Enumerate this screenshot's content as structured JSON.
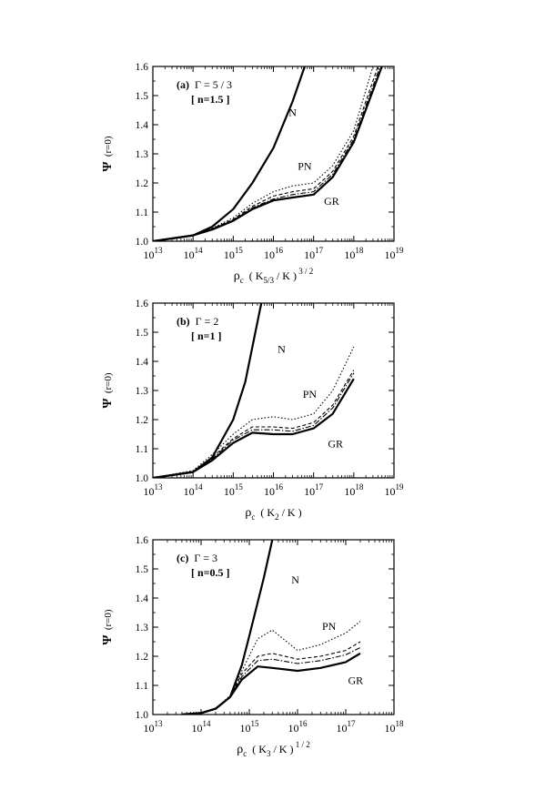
{
  "chart_data": [
    {
      "type": "line",
      "panel": "(a)",
      "annotation_gamma": "Γ = 5 / 3",
      "annotation_n_open": "[ ",
      "annotation_n": "n=1.5",
      "annotation_n_close": " ]",
      "ylabel_main": "Ψ",
      "ylabel_sub": "(r=0)",
      "xlabel_main": "ρ",
      "xlabel_c": "c",
      "xlabel_rest": "( K",
      "xlabel_sub": "5/3",
      "xlabel_mid": "/ K )",
      "xlabel_sup": "3 / 2",
      "x_scale": "log",
      "xlim": [
        10000000000000.0,
        1e+19
      ],
      "ylim": [
        1.0,
        1.6
      ],
      "yticks": [
        "1.0",
        "1.1",
        "1.2",
        "1.3",
        "1.4",
        "1.5",
        "1.6"
      ],
      "xtick_exponents": [
        "13",
        "14",
        "15",
        "16",
        "17",
        "18",
        "19"
      ],
      "xtick_base": "10",
      "labels": [
        {
          "text": "N",
          "x": 3e+16,
          "y": 1.43
        },
        {
          "text": "PN",
          "x": 6e+16,
          "y": 1.245
        },
        {
          "text": "GR",
          "x": 2.8e+17,
          "y": 1.125
        }
      ],
      "series": [
        {
          "name": "N",
          "style": "solid-thick",
          "x": [
            10000000000000.0,
            100000000000000.0,
            300000000000000.0,
            1000000000000000.0,
            3000000000000000.0,
            1e+16,
            3e+16,
            6e+16
          ],
          "y": [
            1.0,
            1.02,
            1.05,
            1.11,
            1.2,
            1.32,
            1.48,
            1.6
          ]
        },
        {
          "name": "PN",
          "style": "dotted",
          "x": [
            10000000000000.0,
            100000000000000.0,
            300000000000000.0,
            1000000000000000.0,
            3000000000000000.0,
            1e+16,
            3e+16,
            1e+17,
            3e+17,
            1e+18,
            3e+18
          ],
          "y": [
            1.0,
            1.02,
            1.045,
            1.08,
            1.13,
            1.17,
            1.19,
            1.2,
            1.26,
            1.38,
            1.6
          ]
        },
        {
          "name": "",
          "style": "dashed",
          "x": [
            10000000000000.0,
            100000000000000.0,
            300000000000000.0,
            1000000000000000.0,
            3000000000000000.0,
            1e+16,
            3e+16,
            1e+17,
            3e+17,
            1e+18,
            4e+18
          ],
          "y": [
            1.0,
            1.02,
            1.043,
            1.075,
            1.12,
            1.155,
            1.17,
            1.18,
            1.24,
            1.36,
            1.6
          ]
        },
        {
          "name": "",
          "style": "dashdot",
          "x": [
            10000000000000.0,
            100000000000000.0,
            300000000000000.0,
            1000000000000000.0,
            3000000000000000.0,
            1e+16,
            3e+16,
            1e+17,
            3e+17,
            1e+18,
            4.5e+18
          ],
          "y": [
            1.0,
            1.02,
            1.042,
            1.072,
            1.115,
            1.145,
            1.16,
            1.17,
            1.23,
            1.35,
            1.6
          ]
        },
        {
          "name": "GR",
          "style": "solid-thick",
          "x": [
            10000000000000.0,
            100000000000000.0,
            300000000000000.0,
            1000000000000000.0,
            3000000000000000.0,
            1e+16,
            3e+16,
            1e+17,
            3e+17,
            1e+18,
            5e+18
          ],
          "y": [
            1.0,
            1.02,
            1.04,
            1.07,
            1.11,
            1.14,
            1.15,
            1.16,
            1.22,
            1.34,
            1.6
          ]
        }
      ]
    },
    {
      "type": "line",
      "panel": "(b)",
      "annotation_gamma": "Γ = 2",
      "annotation_n_open": "[ ",
      "annotation_n": "n=1",
      "annotation_n_close": " ]",
      "ylabel_main": "Ψ",
      "ylabel_sub": "(r=0)",
      "xlabel_main": "ρ",
      "xlabel_c": "c",
      "xlabel_rest": "( K",
      "xlabel_sub": "2",
      "xlabel_mid": "/ K )",
      "xlabel_sup": "",
      "x_scale": "log",
      "xlim": [
        10000000000000.0,
        1e+19
      ],
      "ylim": [
        1.0,
        1.6
      ],
      "yticks": [
        "1.0",
        "1.1",
        "1.2",
        "1.3",
        "1.4",
        "1.5",
        "1.6"
      ],
      "xtick_exponents": [
        "13",
        "14",
        "15",
        "16",
        "17",
        "18",
        "19"
      ],
      "xtick_base": "10",
      "labels": [
        {
          "text": "N",
          "x": 1.6e+16,
          "y": 1.43
        },
        {
          "text": "PN",
          "x": 8e+16,
          "y": 1.275
        },
        {
          "text": "GR",
          "x": 3.5e+17,
          "y": 1.105
        }
      ],
      "series": [
        {
          "name": "N",
          "style": "solid-thick",
          "x": [
            10000000000000.0,
            100000000000000.0,
            300000000000000.0,
            1000000000000000.0,
            2000000000000000.0,
            3000000000000000.0,
            5000000000000000.0
          ],
          "y": [
            1.0,
            1.02,
            1.07,
            1.2,
            1.33,
            1.45,
            1.6
          ]
        },
        {
          "name": "PN",
          "style": "dotted",
          "x": [
            10000000000000.0,
            100000000000000.0,
            300000000000000.0,
            1000000000000000.0,
            3000000000000000.0,
            1e+16,
            3e+16,
            1e+17,
            3e+17,
            1e+18
          ],
          "y": [
            1.0,
            1.025,
            1.08,
            1.15,
            1.2,
            1.21,
            1.2,
            1.22,
            1.3,
            1.45
          ]
        },
        {
          "name": "",
          "style": "dashed",
          "x": [
            10000000000000.0,
            100000000000000.0,
            300000000000000.0,
            1000000000000000.0,
            3000000000000000.0,
            1e+16,
            3e+16,
            1e+17,
            3e+17,
            1e+18
          ],
          "y": [
            1.0,
            1.022,
            1.07,
            1.135,
            1.175,
            1.175,
            1.17,
            1.19,
            1.25,
            1.37
          ]
        },
        {
          "name": "",
          "style": "dashdot",
          "x": [
            10000000000000.0,
            100000000000000.0,
            300000000000000.0,
            1000000000000000.0,
            3000000000000000.0,
            1e+16,
            3e+16,
            1e+17,
            3e+17,
            1e+18
          ],
          "y": [
            1.0,
            1.021,
            1.065,
            1.13,
            1.165,
            1.165,
            1.16,
            1.18,
            1.24,
            1.36
          ]
        },
        {
          "name": "GR",
          "style": "solid-thick",
          "x": [
            10000000000000.0,
            100000000000000.0,
            300000000000000.0,
            1000000000000000.0,
            3000000000000000.0,
            1e+16,
            3e+16,
            1e+17,
            3e+17,
            1e+18
          ],
          "y": [
            1.0,
            1.02,
            1.06,
            1.12,
            1.155,
            1.15,
            1.15,
            1.17,
            1.22,
            1.34
          ]
        }
      ]
    },
    {
      "type": "line",
      "panel": "(c)",
      "annotation_gamma": "Γ = 3",
      "annotation_n_open": "[ ",
      "annotation_n": "n=0.5",
      "annotation_n_close": " ]",
      "ylabel_main": "Ψ",
      "ylabel_sub": "(r=0)",
      "xlabel_main": "ρ",
      "xlabel_c": "c",
      "xlabel_rest": "( K",
      "xlabel_sub": "3",
      "xlabel_mid": "/ K )",
      "xlabel_sup": "1 / 2",
      "x_scale": "log",
      "xlim": [
        10000000000000.0,
        1e+18
      ],
      "ylim": [
        1.0,
        1.6
      ],
      "yticks": [
        "1.0",
        "1.1",
        "1.2",
        "1.3",
        "1.4",
        "1.5",
        "1.6"
      ],
      "xtick_exponents": [
        "13",
        "14",
        "15",
        "16",
        "17",
        "18"
      ],
      "xtick_base": "10",
      "labels": [
        {
          "text": "N",
          "x": 9000000000000000.0,
          "y": 1.45
        },
        {
          "text": "PN",
          "x": 4.5e+16,
          "y": 1.29
        },
        {
          "text": "GR",
          "x": 1.6e+17,
          "y": 1.105
        }
      ],
      "series": [
        {
          "name": "N",
          "style": "solid-thick",
          "x": [
            40000000000000.0,
            100000000000000.0,
            200000000000000.0,
            400000000000000.0,
            700000000000000.0,
            1000000000000000.0,
            2000000000000000.0,
            3000000000000000.0
          ],
          "y": [
            1.0,
            1.005,
            1.02,
            1.06,
            1.17,
            1.27,
            1.47,
            1.6
          ]
        },
        {
          "name": "PN",
          "style": "dotted",
          "x": [
            40000000000000.0,
            100000000000000.0,
            200000000000000.0,
            400000000000000.0,
            700000000000000.0,
            1500000000000000.0,
            3000000000000000.0,
            1e+16,
            3e+16,
            1e+17,
            2e+17
          ],
          "y": [
            1.0,
            1.005,
            1.02,
            1.065,
            1.15,
            1.26,
            1.29,
            1.22,
            1.24,
            1.28,
            1.32
          ]
        },
        {
          "name": "",
          "style": "dashed",
          "x": [
            40000000000000.0,
            100000000000000.0,
            200000000000000.0,
            400000000000000.0,
            700000000000000.0,
            1500000000000000.0,
            3000000000000000.0,
            1e+16,
            3e+16,
            1e+17,
            2e+17
          ],
          "y": [
            1.0,
            1.005,
            1.02,
            1.062,
            1.14,
            1.2,
            1.21,
            1.19,
            1.2,
            1.22,
            1.25
          ]
        },
        {
          "name": "",
          "style": "dashdot",
          "x": [
            40000000000000.0,
            100000000000000.0,
            200000000000000.0,
            400000000000000.0,
            700000000000000.0,
            1500000000000000.0,
            3000000000000000.0,
            1e+16,
            3e+16,
            1e+17,
            2e+17
          ],
          "y": [
            1.0,
            1.005,
            1.02,
            1.061,
            1.13,
            1.185,
            1.19,
            1.175,
            1.185,
            1.205,
            1.23
          ]
        },
        {
          "name": "GR",
          "style": "solid-thick",
          "x": [
            40000000000000.0,
            100000000000000.0,
            200000000000000.0,
            400000000000000.0,
            700000000000000.0,
            1500000000000000.0,
            3000000000000000.0,
            1e+16,
            3e+16,
            1e+17,
            2e+17
          ],
          "y": [
            1.0,
            1.005,
            1.02,
            1.06,
            1.12,
            1.165,
            1.16,
            1.15,
            1.16,
            1.18,
            1.21
          ]
        }
      ]
    }
  ]
}
